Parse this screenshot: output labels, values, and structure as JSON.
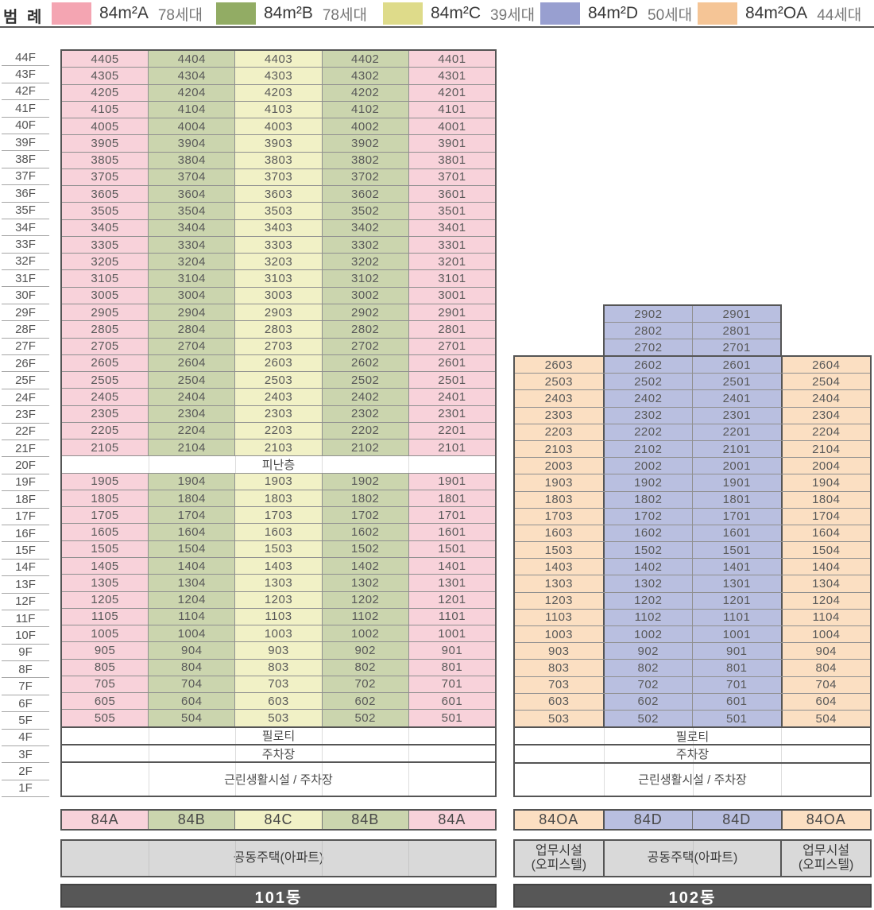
{
  "legend": {
    "title": "범 례",
    "items": [
      {
        "key": "A",
        "label": "84m²A",
        "count": "78세대",
        "swatch": "#f4a5b2",
        "cell": "#f8d2da"
      },
      {
        "key": "B",
        "label": "84m²B",
        "count": "78세대",
        "swatch": "#92ac64",
        "cell": "#cbd5ae"
      },
      {
        "key": "C",
        "label": "84m²C",
        "count": "39세대",
        "swatch": "#dedb8a",
        "cell": "#f1f1c6"
      },
      {
        "key": "D",
        "label": "84m²D",
        "count": "50세대",
        "swatch": "#989fd0",
        "cell": "#b9bfe0"
      },
      {
        "key": "OA",
        "label": "84m²OA",
        "count": "44세대",
        "swatch": "#f5c596",
        "cell": "#fbdfc2"
      }
    ]
  },
  "floor_axis": [
    "44F",
    "43F",
    "42F",
    "41F",
    "40F",
    "39F",
    "38F",
    "37F",
    "36F",
    "35F",
    "34F",
    "33F",
    "32F",
    "31F",
    "30F",
    "29F",
    "28F",
    "27F",
    "26F",
    "25F",
    "24F",
    "23F",
    "22F",
    "21F",
    "20F",
    "19F",
    "18F",
    "17F",
    "16F",
    "15F",
    "14F",
    "13F",
    "12F",
    "11F",
    "10F",
    "9F",
    "8F",
    "7F",
    "6F",
    "5F",
    "4F",
    "3F",
    "2F",
    "1F"
  ],
  "b101": {
    "title": "101동",
    "pattern": [
      "A",
      "B",
      "C",
      "B",
      "A"
    ],
    "thick_cols": [],
    "types": [
      "84A",
      "84B",
      "84C",
      "84B",
      "84A"
    ],
    "usage": [
      {
        "label": "공동주택(아파트)",
        "span": 5
      }
    ],
    "rows": [
      {
        "f": "44F",
        "u": [
          "4405",
          "4404",
          "4403",
          "4402",
          "4401"
        ]
      },
      {
        "f": "43F",
        "u": [
          "4305",
          "4304",
          "4303",
          "4302",
          "4301"
        ]
      },
      {
        "f": "42F",
        "u": [
          "4205",
          "4204",
          "4203",
          "4202",
          "4201"
        ]
      },
      {
        "f": "41F",
        "u": [
          "4105",
          "4104",
          "4103",
          "4102",
          "4101"
        ]
      },
      {
        "f": "40F",
        "u": [
          "4005",
          "4004",
          "4003",
          "4002",
          "4001"
        ]
      },
      {
        "f": "39F",
        "u": [
          "3905",
          "3904",
          "3903",
          "3902",
          "3901"
        ]
      },
      {
        "f": "38F",
        "u": [
          "3805",
          "3804",
          "3803",
          "3802",
          "3801"
        ]
      },
      {
        "f": "37F",
        "u": [
          "3705",
          "3704",
          "3703",
          "3702",
          "3701"
        ]
      },
      {
        "f": "36F",
        "u": [
          "3605",
          "3604",
          "3603",
          "3602",
          "3601"
        ]
      },
      {
        "f": "35F",
        "u": [
          "3505",
          "3504",
          "3503",
          "3502",
          "3501"
        ]
      },
      {
        "f": "34F",
        "u": [
          "3405",
          "3404",
          "3403",
          "3402",
          "3401"
        ]
      },
      {
        "f": "33F",
        "u": [
          "3305",
          "3304",
          "3303",
          "3302",
          "3301"
        ]
      },
      {
        "f": "32F",
        "u": [
          "3205",
          "3204",
          "3203",
          "3202",
          "3201"
        ]
      },
      {
        "f": "31F",
        "u": [
          "3105",
          "3104",
          "3103",
          "3102",
          "3101"
        ]
      },
      {
        "f": "30F",
        "u": [
          "3005",
          "3004",
          "3003",
          "3002",
          "3001"
        ]
      },
      {
        "f": "29F",
        "u": [
          "2905",
          "2904",
          "2903",
          "2902",
          "2901"
        ]
      },
      {
        "f": "28F",
        "u": [
          "2805",
          "2804",
          "2803",
          "2802",
          "2801"
        ]
      },
      {
        "f": "27F",
        "u": [
          "2705",
          "2704",
          "2703",
          "2702",
          "2701"
        ]
      },
      {
        "f": "26F",
        "u": [
          "2605",
          "2604",
          "2603",
          "2602",
          "2601"
        ]
      },
      {
        "f": "25F",
        "u": [
          "2505",
          "2504",
          "2503",
          "2502",
          "2501"
        ]
      },
      {
        "f": "24F",
        "u": [
          "2405",
          "2404",
          "2403",
          "2402",
          "2401"
        ]
      },
      {
        "f": "23F",
        "u": [
          "2305",
          "2304",
          "2303",
          "2302",
          "2301"
        ]
      },
      {
        "f": "22F",
        "u": [
          "2205",
          "2204",
          "2203",
          "2202",
          "2201"
        ]
      },
      {
        "f": "21F",
        "u": [
          "2105",
          "2104",
          "2103",
          "2102",
          "2101"
        ]
      },
      {
        "f": "20F",
        "span": "피난층",
        "nm": "refuge-floor-row"
      },
      {
        "f": "19F",
        "u": [
          "1905",
          "1904",
          "1903",
          "1902",
          "1901"
        ]
      },
      {
        "f": "18F",
        "u": [
          "1805",
          "1804",
          "1803",
          "1802",
          "1801"
        ]
      },
      {
        "f": "17F",
        "u": [
          "1705",
          "1704",
          "1703",
          "1702",
          "1701"
        ]
      },
      {
        "f": "16F",
        "u": [
          "1605",
          "1604",
          "1603",
          "1602",
          "1601"
        ]
      },
      {
        "f": "15F",
        "u": [
          "1505",
          "1504",
          "1503",
          "1502",
          "1501"
        ]
      },
      {
        "f": "14F",
        "u": [
          "1405",
          "1404",
          "1403",
          "1402",
          "1401"
        ]
      },
      {
        "f": "13F",
        "u": [
          "1305",
          "1304",
          "1303",
          "1302",
          "1301"
        ]
      },
      {
        "f": "12F",
        "u": [
          "1205",
          "1204",
          "1203",
          "1202",
          "1201"
        ]
      },
      {
        "f": "11F",
        "u": [
          "1105",
          "1104",
          "1103",
          "1102",
          "1101"
        ]
      },
      {
        "f": "10F",
        "u": [
          "1005",
          "1004",
          "1003",
          "1002",
          "1001"
        ]
      },
      {
        "f": "9F",
        "u": [
          "905",
          "904",
          "903",
          "902",
          "901"
        ]
      },
      {
        "f": "8F",
        "u": [
          "805",
          "804",
          "803",
          "802",
          "801"
        ]
      },
      {
        "f": "7F",
        "u": [
          "705",
          "704",
          "703",
          "702",
          "701"
        ]
      },
      {
        "f": "6F",
        "u": [
          "605",
          "604",
          "603",
          "602",
          "601"
        ]
      },
      {
        "f": "5F",
        "u": [
          "505",
          "504",
          "503",
          "502",
          "501"
        ]
      },
      {
        "f": "4F",
        "span": "필로티",
        "thick": true,
        "nm": "piloti-row"
      },
      {
        "f": "3F",
        "span": "주차장",
        "thick": true,
        "nm": "parking-row"
      },
      {
        "f": "2F/1F",
        "span": "근린생활시설 / 주차장",
        "thick": true,
        "double": true,
        "nm": "retail-parking-row"
      }
    ]
  },
  "b102": {
    "title": "102동",
    "pattern": [
      "OA",
      "D",
      "D",
      "OA"
    ],
    "thick_cols": [
      1,
      3
    ],
    "types": [
      "84OA",
      "84D",
      "84D",
      "84OA"
    ],
    "usage": [
      {
        "label": "업무시설\n(오피스텔)",
        "span": 1
      },
      {
        "label": "공동주택(아파트)",
        "span": 2
      },
      {
        "label": "업무시설\n(오피스텔)",
        "span": 1
      }
    ],
    "tower_pattern": [
      "D",
      "D"
    ],
    "tower_rows": [
      {
        "f": "29F",
        "u": [
          "2902",
          "2901"
        ]
      },
      {
        "f": "28F",
        "u": [
          "2802",
          "2801"
        ]
      },
      {
        "f": "27F",
        "u": [
          "2702",
          "2701"
        ]
      }
    ],
    "rows": [
      {
        "f": "26F",
        "u": [
          "2603",
          "2602",
          "2601",
          "2604"
        ]
      },
      {
        "f": "25F",
        "u": [
          "2503",
          "2502",
          "2501",
          "2504"
        ]
      },
      {
        "f": "24F",
        "u": [
          "2403",
          "2402",
          "2401",
          "2404"
        ]
      },
      {
        "f": "23F",
        "u": [
          "2303",
          "2302",
          "2301",
          "2304"
        ]
      },
      {
        "f": "22F",
        "u": [
          "2203",
          "2202",
          "2201",
          "2204"
        ]
      },
      {
        "f": "21F",
        "u": [
          "2103",
          "2102",
          "2101",
          "2104"
        ]
      },
      {
        "f": "20F",
        "u": [
          "2003",
          "2002",
          "2001",
          "2004"
        ]
      },
      {
        "f": "19F",
        "u": [
          "1903",
          "1902",
          "1901",
          "1904"
        ]
      },
      {
        "f": "18F",
        "u": [
          "1803",
          "1802",
          "1801",
          "1804"
        ]
      },
      {
        "f": "17F",
        "u": [
          "1703",
          "1702",
          "1701",
          "1704"
        ]
      },
      {
        "f": "16F",
        "u": [
          "1603",
          "1602",
          "1601",
          "1604"
        ]
      },
      {
        "f": "15F",
        "u": [
          "1503",
          "1502",
          "1501",
          "1504"
        ]
      },
      {
        "f": "14F",
        "u": [
          "1403",
          "1402",
          "1401",
          "1404"
        ]
      },
      {
        "f": "13F",
        "u": [
          "1303",
          "1302",
          "1301",
          "1304"
        ]
      },
      {
        "f": "12F",
        "u": [
          "1203",
          "1202",
          "1201",
          "1204"
        ]
      },
      {
        "f": "11F",
        "u": [
          "1103",
          "1102",
          "1101",
          "1104"
        ]
      },
      {
        "f": "10F",
        "u": [
          "1003",
          "1002",
          "1001",
          "1004"
        ]
      },
      {
        "f": "9F",
        "u": [
          "903",
          "902",
          "901",
          "904"
        ]
      },
      {
        "f": "8F",
        "u": [
          "803",
          "802",
          "801",
          "804"
        ]
      },
      {
        "f": "7F",
        "u": [
          "703",
          "702",
          "701",
          "704"
        ]
      },
      {
        "f": "6F",
        "u": [
          "603",
          "602",
          "601",
          "604"
        ]
      },
      {
        "f": "5F",
        "u": [
          "503",
          "502",
          "501",
          "504"
        ]
      },
      {
        "f": "4F",
        "span": "필로티",
        "thick": true,
        "nm": "piloti-row"
      },
      {
        "f": "3F",
        "span": "주차장",
        "thick": true,
        "nm": "parking-row"
      },
      {
        "f": "2F/1F",
        "span": "근린생활시설 / 주차장",
        "thick": true,
        "double": true,
        "nm": "retail-parking-row"
      }
    ]
  }
}
